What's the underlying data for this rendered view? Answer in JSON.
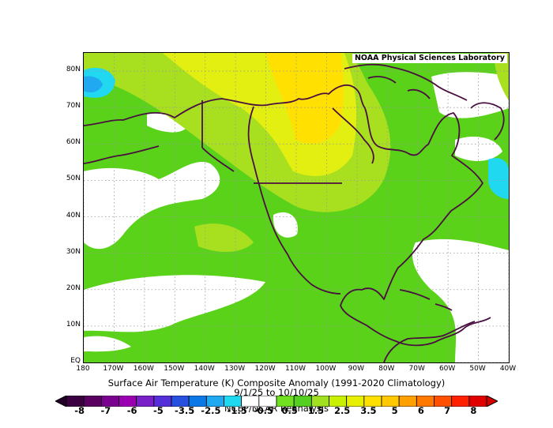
{
  "map": {
    "badge": "NOAA Physical Sciences Laboratory",
    "lat_labels": [
      "80N",
      "70N",
      "60N",
      "50N",
      "40N",
      "30N",
      "20N",
      "10N",
      "EQ"
    ],
    "lon_labels": [
      "180",
      "170W",
      "160W",
      "150W",
      "140W",
      "130W",
      "120W",
      "110W",
      "100W",
      "90W",
      "80W",
      "70W",
      "60W",
      "50W",
      "40W"
    ],
    "extent": {
      "lon_min": -180,
      "lon_max": -40,
      "lat_min": 0,
      "lat_max": 85
    },
    "coast_color": "#4a1040"
  },
  "captions": {
    "title": "Surface Air Temperature (K) Composite Anomaly (1991-2020 Climatology)",
    "dates": "9/1/25 to 10/10/25",
    "source": "NCEP/NCAR Reanalysis"
  },
  "colorbar": {
    "labels": [
      "-8",
      "-7",
      "-6",
      "-5",
      "-3.5",
      "-2.5",
      "-1.5",
      "-0.5",
      "0.5",
      "1.5",
      "2.5",
      "3.5",
      "5",
      "6",
      "7",
      "8"
    ],
    "colors": [
      "#3a0040",
      "#5a0060",
      "#7a0090",
      "#9a00b0",
      "#7a20c8",
      "#5530d8",
      "#2850e0",
      "#0a78e6",
      "#20a8f0",
      "#20d8f0",
      "#ffffff",
      "#ffffff",
      "#70e020",
      "#55d020",
      "#a0e020",
      "#c8f000",
      "#e6f000",
      "#ffe000",
      "#ffc800",
      "#ffa000",
      "#ff7800",
      "#ff5000",
      "#ff2000",
      "#e00000"
    ],
    "under_color": "#220028",
    "over_color": "#d00000"
  }
}
